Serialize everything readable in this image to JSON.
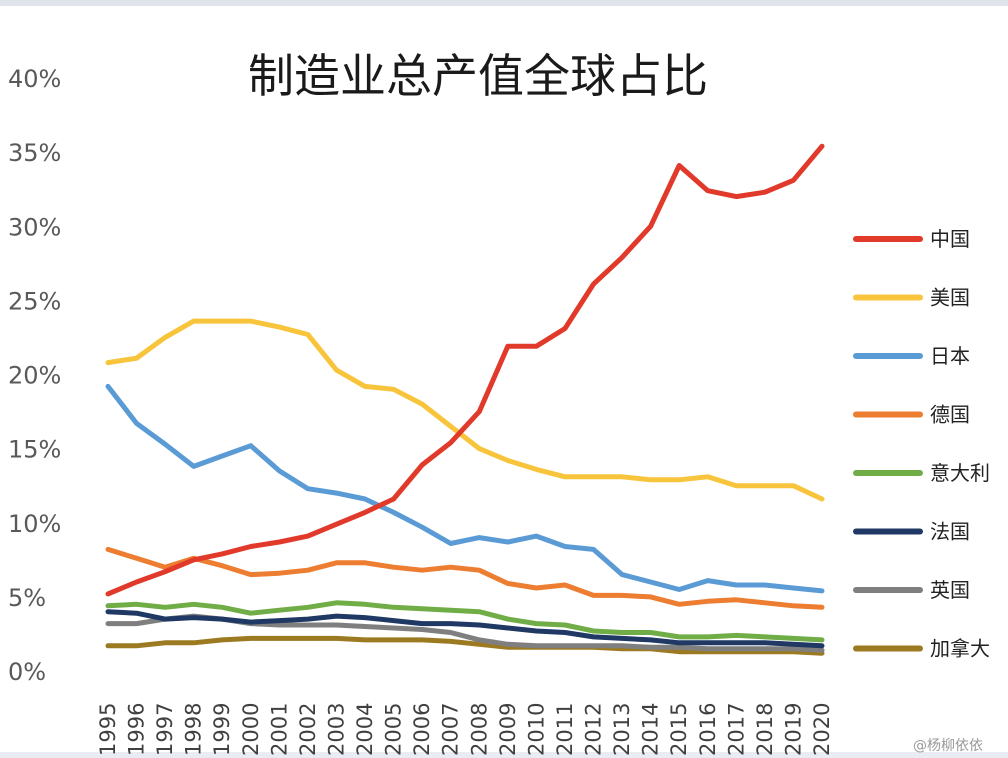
{
  "chart_data": {
    "type": "line",
    "title": "制造业总产值全球占比",
    "xlabel": "",
    "ylabel": "",
    "y_tick_labels": [
      "0%",
      "5%",
      "10%",
      "15%",
      "20%",
      "25%",
      "30%",
      "35%",
      "40%"
    ],
    "ylim": [
      0,
      40
    ],
    "x_tick_labels": [
      "1995",
      "1996",
      "1997",
      "1998",
      "1999",
      "2000",
      "2001",
      "2002",
      "2003",
      "2004",
      "2005",
      "2006",
      "2007",
      "2008",
      "2009",
      "2010",
      "2011",
      "2012",
      "2013",
      "2014",
      "2015",
      "2016",
      "2017",
      "2018",
      "2019",
      "2020"
    ],
    "x": [
      1995,
      1996,
      1997,
      1998,
      1999,
      2000,
      2001,
      2002,
      2003,
      2004,
      2005,
      2006,
      2007,
      2008,
      2009,
      2010,
      2011,
      2012,
      2013,
      2014,
      2015,
      2016,
      2017,
      2018,
      2019,
      2020
    ],
    "grid": false,
    "legend_position": "right",
    "series": [
      {
        "name": "中国",
        "color": "#e13a2a",
        "values": [
          5.2,
          6.0,
          6.7,
          7.5,
          7.9,
          8.4,
          8.7,
          9.1,
          9.9,
          10.7,
          11.6,
          13.9,
          15.4,
          17.5,
          21.9,
          21.9,
          23.1,
          26.1,
          27.9,
          30.0,
          34.1,
          32.4,
          32.0,
          32.3,
          33.1,
          35.4
        ]
      },
      {
        "name": "美国",
        "color": "#f7c43c",
        "values": [
          20.8,
          21.1,
          22.5,
          23.6,
          23.6,
          23.6,
          23.2,
          22.7,
          20.3,
          19.2,
          19.0,
          18.0,
          16.5,
          15.0,
          14.2,
          13.6,
          13.1,
          13.1,
          13.1,
          12.9,
          12.9,
          13.1,
          12.5,
          12.5,
          12.5,
          11.6
        ]
      },
      {
        "name": "日本",
        "color": "#5b9bd5",
        "values": [
          19.2,
          16.7,
          15.3,
          13.8,
          14.5,
          15.2,
          13.5,
          12.3,
          12.0,
          11.6,
          10.7,
          9.7,
          8.6,
          9.0,
          8.7,
          9.1,
          8.4,
          8.2,
          6.5,
          6.0,
          5.5,
          6.1,
          5.8,
          5.8,
          5.6,
          5.4
        ]
      },
      {
        "name": "德国",
        "color": "#ed7d31",
        "values": [
          8.2,
          7.6,
          7.0,
          7.6,
          7.1,
          6.5,
          6.6,
          6.8,
          7.3,
          7.3,
          7.0,
          6.8,
          7.0,
          6.8,
          5.9,
          5.6,
          5.8,
          5.1,
          5.1,
          5.0,
          4.5,
          4.7,
          4.8,
          4.6,
          4.4,
          4.3
        ]
      },
      {
        "name": "意大利",
        "color": "#70ad47",
        "values": [
          4.4,
          4.5,
          4.3,
          4.5,
          4.3,
          3.9,
          4.1,
          4.3,
          4.6,
          4.5,
          4.3,
          4.2,
          4.1,
          4.0,
          3.5,
          3.2,
          3.1,
          2.7,
          2.6,
          2.6,
          2.3,
          2.3,
          2.4,
          2.3,
          2.2,
          2.1
        ]
      },
      {
        "name": "法国",
        "color": "#1f3864",
        "values": [
          4.0,
          3.9,
          3.5,
          3.6,
          3.5,
          3.3,
          3.4,
          3.5,
          3.7,
          3.6,
          3.4,
          3.2,
          3.2,
          3.1,
          2.9,
          2.7,
          2.6,
          2.3,
          2.2,
          2.1,
          1.9,
          1.9,
          1.9,
          1.9,
          1.8,
          1.7
        ]
      },
      {
        "name": "英国",
        "color": "#7f7f7f",
        "values": [
          3.2,
          3.2,
          3.5,
          3.7,
          3.5,
          3.2,
          3.1,
          3.1,
          3.1,
          3.0,
          2.9,
          2.8,
          2.6,
          2.1,
          1.8,
          1.7,
          1.7,
          1.7,
          1.7,
          1.6,
          1.6,
          1.5,
          1.5,
          1.5,
          1.5,
          1.4
        ]
      },
      {
        "name": "加拿大",
        "color": "#9c7a22",
        "values": [
          1.7,
          1.7,
          1.9,
          1.9,
          2.1,
          2.2,
          2.2,
          2.2,
          2.2,
          2.1,
          2.1,
          2.1,
          2.0,
          1.8,
          1.6,
          1.6,
          1.6,
          1.6,
          1.5,
          1.5,
          1.3,
          1.3,
          1.3,
          1.3,
          1.3,
          1.2
        ]
      }
    ]
  },
  "watermark": {
    "text": "@杨柳依依"
  }
}
